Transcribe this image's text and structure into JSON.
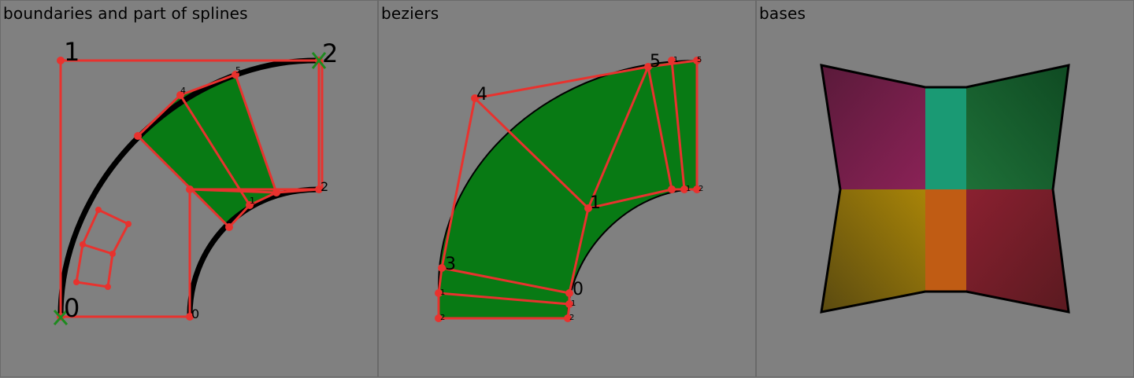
{
  "panels": [
    {
      "title": "boundaries and part of splines"
    },
    {
      "title": "beziers"
    },
    {
      "title": "bases"
    }
  ],
  "panel1": {
    "corner_labels": [
      "0",
      "1",
      "2"
    ],
    "small_labels": [
      "4",
      "5",
      "0",
      "2",
      "1"
    ]
  },
  "panel2": {
    "labels": [
      "0",
      "1",
      "3",
      "4",
      "5"
    ],
    "small_labels": [
      "1",
      "2",
      "1",
      "2",
      "1",
      "2",
      "1",
      "5"
    ]
  },
  "colors": {
    "background": "#808080",
    "control_polygon": "#e8322e",
    "fill_green": "#087a14",
    "endpoint_marker": "#1e8a1e",
    "base_magenta": "#7a1f4a",
    "base_teal": "#1a9a74",
    "base_darkgreen": "#175a2c",
    "base_ochre": "#a07a0a",
    "base_orange": "#c05c14",
    "base_red": "#7a1a26"
  }
}
